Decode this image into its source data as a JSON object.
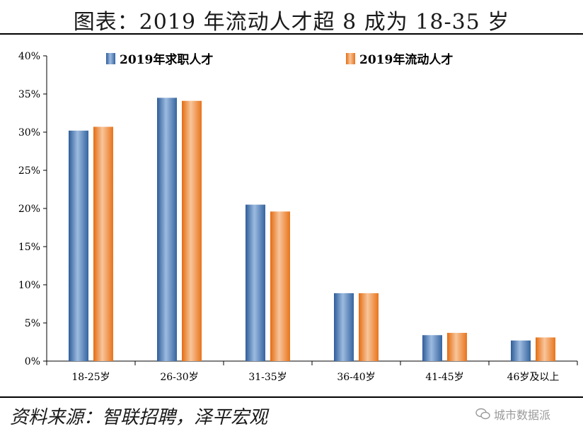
{
  "title": "图表：2019 年流动人才超 8 成为 18-35 岁",
  "source": "资料来源：智联招聘，泽平宏观",
  "watermark": "城市数据派",
  "colors": {
    "series_blue": "#4f81bd",
    "series_orange": "#f79646"
  },
  "chart_data": {
    "type": "bar",
    "categories": [
      "18-25岁",
      "26-30岁",
      "31-35岁",
      "36-40岁",
      "41-45岁",
      "46岁及以上"
    ],
    "series": [
      {
        "name": "2019年求职人才",
        "values": [
          30.2,
          34.5,
          20.5,
          8.9,
          3.4,
          2.7
        ]
      },
      {
        "name": "2019年流动人才",
        "values": [
          30.7,
          34.1,
          19.6,
          8.9,
          3.7,
          3.1
        ]
      }
    ],
    "yticks": [
      "0%",
      "5%",
      "10%",
      "15%",
      "20%",
      "25%",
      "30%",
      "35%",
      "40%"
    ],
    "ylim": [
      0,
      40
    ],
    "grid": false,
    "legend_position": "top"
  }
}
